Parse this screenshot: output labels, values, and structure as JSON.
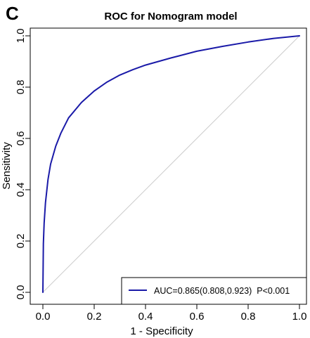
{
  "panel_label": "C",
  "chart_data": {
    "type": "line",
    "title": "ROC for Nomogram model",
    "xlabel": "1 - Specificity",
    "ylabel": "Sensitivity",
    "xlim": [
      0,
      1
    ],
    "ylim": [
      0,
      1
    ],
    "xticks": [
      "0.0",
      "0.2",
      "0.4",
      "0.6",
      "0.8",
      "1.0"
    ],
    "yticks": [
      "0.0",
      "0.2",
      "0.4",
      "0.6",
      "0.8",
      "1.0"
    ],
    "grid": false,
    "legend_position": "bottom-right",
    "series": [
      {
        "name": "AUC=0.865(0.808,0.923)  P<0.001",
        "color": "#1a1aa8",
        "x": [
          0,
          0.002,
          0.005,
          0.01,
          0.02,
          0.03,
          0.05,
          0.07,
          0.1,
          0.15,
          0.2,
          0.25,
          0.3,
          0.35,
          0.4,
          0.5,
          0.6,
          0.7,
          0.8,
          0.9,
          1.0
        ],
        "y": [
          0,
          0.19,
          0.27,
          0.35,
          0.44,
          0.5,
          0.57,
          0.62,
          0.68,
          0.74,
          0.785,
          0.82,
          0.847,
          0.868,
          0.886,
          0.914,
          0.94,
          0.959,
          0.976,
          0.99,
          1.0
        ]
      },
      {
        "name": "",
        "color": "#cccccc",
        "x": [
          0,
          1
        ],
        "y": [
          0,
          1
        ]
      }
    ]
  }
}
